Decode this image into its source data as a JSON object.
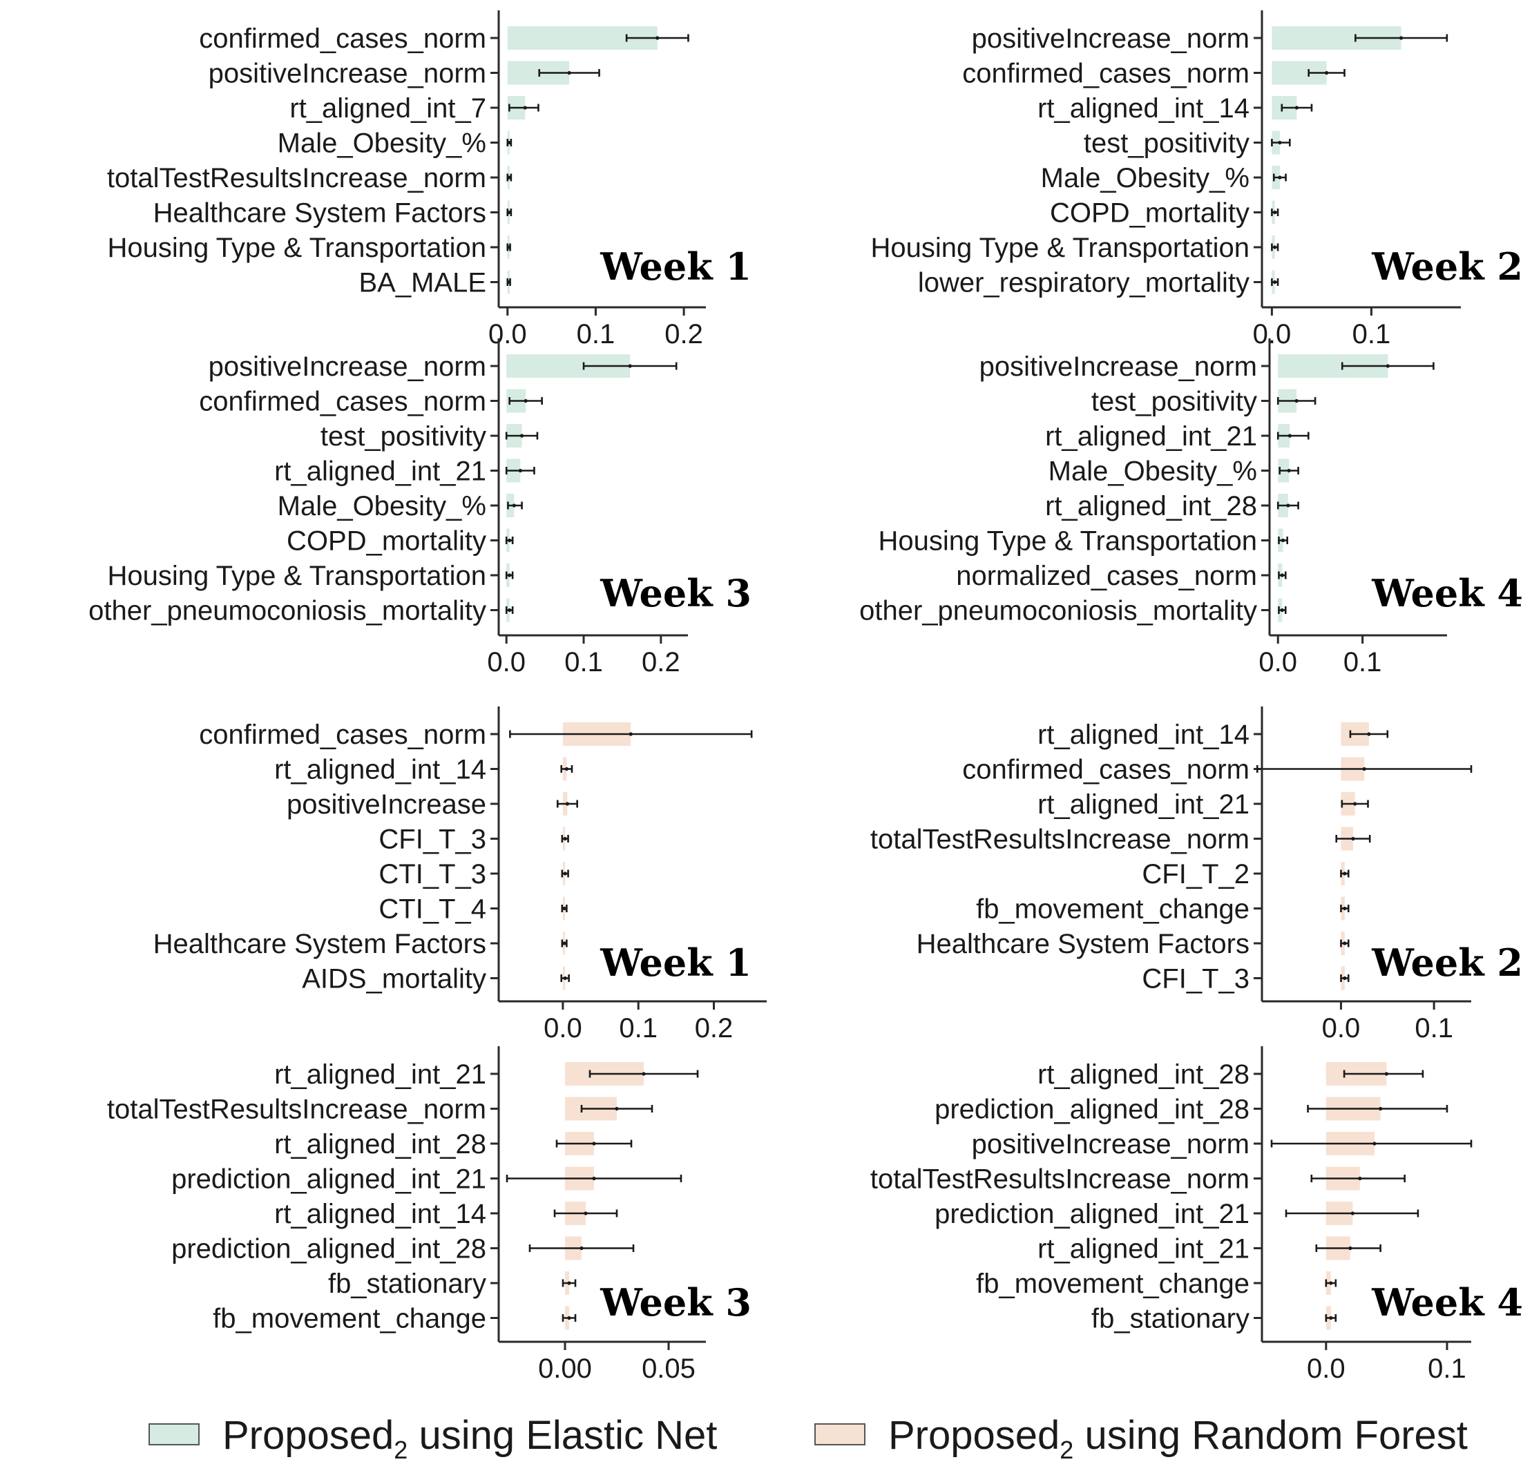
{
  "colors": {
    "elastic_net": "#d6ebe1",
    "random_forest": "#f7e1d3",
    "ink": "#1a1a1a"
  },
  "legend": {
    "items": [
      {
        "prefix": "Proposed",
        "sub": "2",
        "suffix": " using Elastic Net",
        "color": "#d6ebe1"
      },
      {
        "prefix": "Proposed",
        "sub": "2",
        "suffix": " using Random Forest",
        "color": "#f7e1d3"
      }
    ]
  },
  "chart_data": [
    {
      "type": "bar",
      "model": "Elastic Net",
      "week_label": "Week 1",
      "categories": [
        "confirmed_cases_norm",
        "positiveIncrease_norm",
        "rt_aligned_int_7",
        "Male_Obesity_%",
        "totalTestResultsIncrease_norm",
        "Healthcare System Factors",
        "Housing Type & Transportation",
        "BA_MALE"
      ],
      "values": [
        0.17,
        0.07,
        0.02,
        0.002,
        0.002,
        0.002,
        0.001,
        0.001
      ],
      "err_low": [
        0.135,
        0.036,
        0.002,
        0.0,
        0.0,
        0.0,
        0.0,
        0.0
      ],
      "err_high": [
        0.205,
        0.104,
        0.035,
        0.004,
        0.004,
        0.004,
        0.003,
        0.003
      ],
      "xlim": [
        -0.01,
        0.225
      ],
      "xticks": [
        0.0,
        0.1,
        0.2
      ],
      "tick_labels": [
        "0.0",
        "0.1",
        "0.2"
      ]
    },
    {
      "type": "bar",
      "model": "Elastic Net",
      "week_label": "Week 2",
      "categories": [
        "positiveIncrease_norm",
        "confirmed_cases_norm",
        "rt_aligned_int_14",
        "test_positivity",
        "Male_Obesity_%",
        "COPD_mortality",
        "Housing Type & Transportation",
        "lower_respiratory_mortality"
      ],
      "values": [
        0.13,
        0.055,
        0.025,
        0.008,
        0.008,
        0.003,
        0.003,
        0.003
      ],
      "err_low": [
        0.084,
        0.037,
        0.01,
        0.0,
        0.002,
        0.0,
        0.0,
        0.0
      ],
      "err_high": [
        0.176,
        0.073,
        0.04,
        0.018,
        0.014,
        0.006,
        0.006,
        0.006
      ],
      "xlim": [
        -0.01,
        0.19
      ],
      "xticks": [
        0.0,
        0.1
      ],
      "tick_labels": [
        "0.0",
        "0.1"
      ]
    },
    {
      "type": "bar",
      "model": "Elastic Net",
      "week_label": "Week 3",
      "categories": [
        "positiveIncrease_norm",
        "confirmed_cases_norm",
        "test_positivity",
        "rt_aligned_int_21",
        "Male_Obesity_%",
        "COPD_mortality",
        "Housing Type & Transportation",
        "other_pneumoconiosis_mortality"
      ],
      "values": [
        0.16,
        0.025,
        0.02,
        0.018,
        0.01,
        0.004,
        0.004,
        0.004
      ],
      "err_low": [
        0.1,
        0.004,
        0.0,
        0.0,
        0.002,
        0.0,
        0.0,
        0.0
      ],
      "err_high": [
        0.22,
        0.046,
        0.04,
        0.036,
        0.02,
        0.008,
        0.008,
        0.008
      ],
      "xlim": [
        -0.01,
        0.235
      ],
      "xticks": [
        0.0,
        0.1,
        0.2
      ],
      "tick_labels": [
        "0.0",
        "0.1",
        "0.2"
      ]
    },
    {
      "type": "bar",
      "model": "Elastic Net",
      "week_label": "Week 4",
      "categories": [
        "positiveIncrease_norm",
        "test_positivity",
        "rt_aligned_int_21",
        "Male_Obesity_%",
        "rt_aligned_int_28",
        "Housing Type & Transportation",
        "normalized_cases_norm",
        "other_pneumoconiosis_mortality"
      ],
      "values": [
        0.13,
        0.022,
        0.014,
        0.013,
        0.012,
        0.006,
        0.005,
        0.005
      ],
      "err_low": [
        0.076,
        0.0,
        0.0,
        0.002,
        0.0,
        0.001,
        0.001,
        0.001
      ],
      "err_high": [
        0.184,
        0.044,
        0.036,
        0.024,
        0.024,
        0.011,
        0.009,
        0.009
      ],
      "xlim": [
        -0.01,
        0.2
      ],
      "xticks": [
        0.0,
        0.1
      ],
      "tick_labels": [
        "0.0",
        "0.1"
      ]
    },
    {
      "type": "bar",
      "model": "Random Forest",
      "week_label": "Week 1",
      "categories": [
        "confirmed_cases_norm",
        "rt_aligned_int_14",
        "positiveIncrease",
        "CFI_T_3",
        "CTI_T_3",
        "CTI_T_4",
        "Healthcare System Factors",
        "AIDS_mortality"
      ],
      "values": [
        0.09,
        0.005,
        0.006,
        0.003,
        0.003,
        0.002,
        0.002,
        0.003
      ],
      "err_low": [
        -0.07,
        -0.002,
        -0.007,
        -0.001,
        -0.001,
        -0.001,
        -0.001,
        -0.002
      ],
      "err_high": [
        0.25,
        0.012,
        0.019,
        0.007,
        0.007,
        0.005,
        0.005,
        0.008
      ],
      "xlim": [
        -0.085,
        0.27
      ],
      "xticks": [
        0.0,
        0.1,
        0.2
      ],
      "tick_labels": [
        "0.0",
        "0.1",
        "0.2"
      ]
    },
    {
      "type": "bar",
      "model": "Random Forest",
      "week_label": "Week 2",
      "categories": [
        "rt_aligned_int_14",
        "confirmed_cases_norm",
        "rt_aligned_int_21",
        "totalTestResultsIncrease_norm",
        "CFI_T_2",
        "fb_movement_change",
        "Healthcare System Factors",
        "CFI_T_3"
      ],
      "values": [
        0.03,
        0.025,
        0.015,
        0.013,
        0.004,
        0.004,
        0.004,
        0.004
      ],
      "err_low": [
        0.01,
        -0.09,
        0.001,
        -0.005,
        0.0,
        0.0,
        0.0,
        0.0
      ],
      "err_high": [
        0.05,
        0.14,
        0.029,
        0.031,
        0.008,
        0.008,
        0.008,
        0.008
      ],
      "xlim": [
        -0.085,
        0.14
      ],
      "xticks": [
        0.0,
        0.1
      ],
      "tick_labels": [
        "0.0",
        "0.1"
      ]
    },
    {
      "type": "bar",
      "model": "Random Forest",
      "week_label": "Week 3",
      "categories": [
        "rt_aligned_int_21",
        "totalTestResultsIncrease_norm",
        "rt_aligned_int_28",
        "prediction_aligned_int_21",
        "rt_aligned_int_14",
        "prediction_aligned_int_28",
        "fb_stationary",
        "fb_movement_change"
      ],
      "values": [
        0.038,
        0.025,
        0.014,
        0.014,
        0.01,
        0.008,
        0.002,
        0.002
      ],
      "err_low": [
        0.012,
        0.008,
        -0.004,
        -0.028,
        -0.005,
        -0.017,
        -0.001,
        -0.001
      ],
      "err_high": [
        0.064,
        0.042,
        0.032,
        0.056,
        0.025,
        0.033,
        0.005,
        0.005
      ],
      "xlim": [
        -0.032,
        0.068
      ],
      "xticks": [
        0.0,
        0.05
      ],
      "tick_labels": [
        "0.00",
        "0.05"
      ]
    },
    {
      "type": "bar",
      "model": "Random Forest",
      "week_label": "Week 4",
      "categories": [
        "rt_aligned_int_28",
        "prediction_aligned_int_28",
        "positiveIncrease_norm",
        "totalTestResultsIncrease_norm",
        "prediction_aligned_int_21",
        "rt_aligned_int_21",
        "fb_movement_change",
        "fb_stationary"
      ],
      "values": [
        0.05,
        0.045,
        0.04,
        0.028,
        0.022,
        0.02,
        0.004,
        0.004
      ],
      "err_low": [
        0.015,
        -0.015,
        -0.045,
        -0.012,
        -0.033,
        -0.008,
        0.0,
        0.0
      ],
      "err_high": [
        0.08,
        0.1,
        0.12,
        0.065,
        0.076,
        0.045,
        0.008,
        0.008
      ],
      "xlim": [
        -0.053,
        0.12
      ],
      "xticks": [
        0.0,
        0.1
      ],
      "tick_labels": [
        "0.0",
        "0.1"
      ]
    }
  ]
}
